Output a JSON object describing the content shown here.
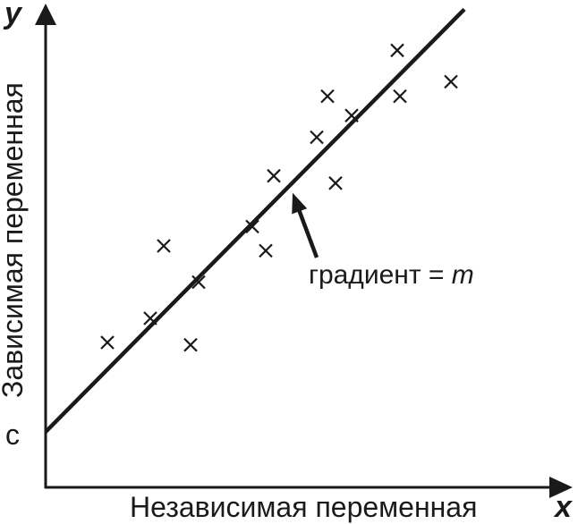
{
  "chart_data": {
    "type": "scatter",
    "xlabel": "Независимая переменная",
    "ylabel": "Зависимая переменная",
    "x_axis_letter": "x",
    "y_axis_letter": "y",
    "intercept_label": "c",
    "xlim": [
      0,
      100
    ],
    "ylim": [
      0,
      100
    ],
    "grid": false,
    "points": [
      {
        "x": 11.5,
        "y": 30.0
      },
      {
        "x": 19.5,
        "y": 35.0
      },
      {
        "x": 22.0,
        "y": 50.0
      },
      {
        "x": 27.0,
        "y": 29.5
      },
      {
        "x": 28.5,
        "y": 42.5
      },
      {
        "x": 38.5,
        "y": 54.0
      },
      {
        "x": 41.0,
        "y": 49.0
      },
      {
        "x": 42.5,
        "y": 64.5
      },
      {
        "x": 50.5,
        "y": 72.5
      },
      {
        "x": 52.5,
        "y": 81.0
      },
      {
        "x": 54.0,
        "y": 63.0
      },
      {
        "x": 57.0,
        "y": 77.0
      },
      {
        "x": 65.5,
        "y": 90.5
      },
      {
        "x": 66.0,
        "y": 81.0
      },
      {
        "x": 75.5,
        "y": 84.0
      }
    ],
    "fit_line": {
      "x0": 0,
      "y0": 11.5,
      "x1": 78.0,
      "y1": 99.0
    },
    "annotation": {
      "text_prefix": "градиент = ",
      "text_var": "m",
      "target": {
        "x": 46.0,
        "y": 61.0
      }
    }
  }
}
